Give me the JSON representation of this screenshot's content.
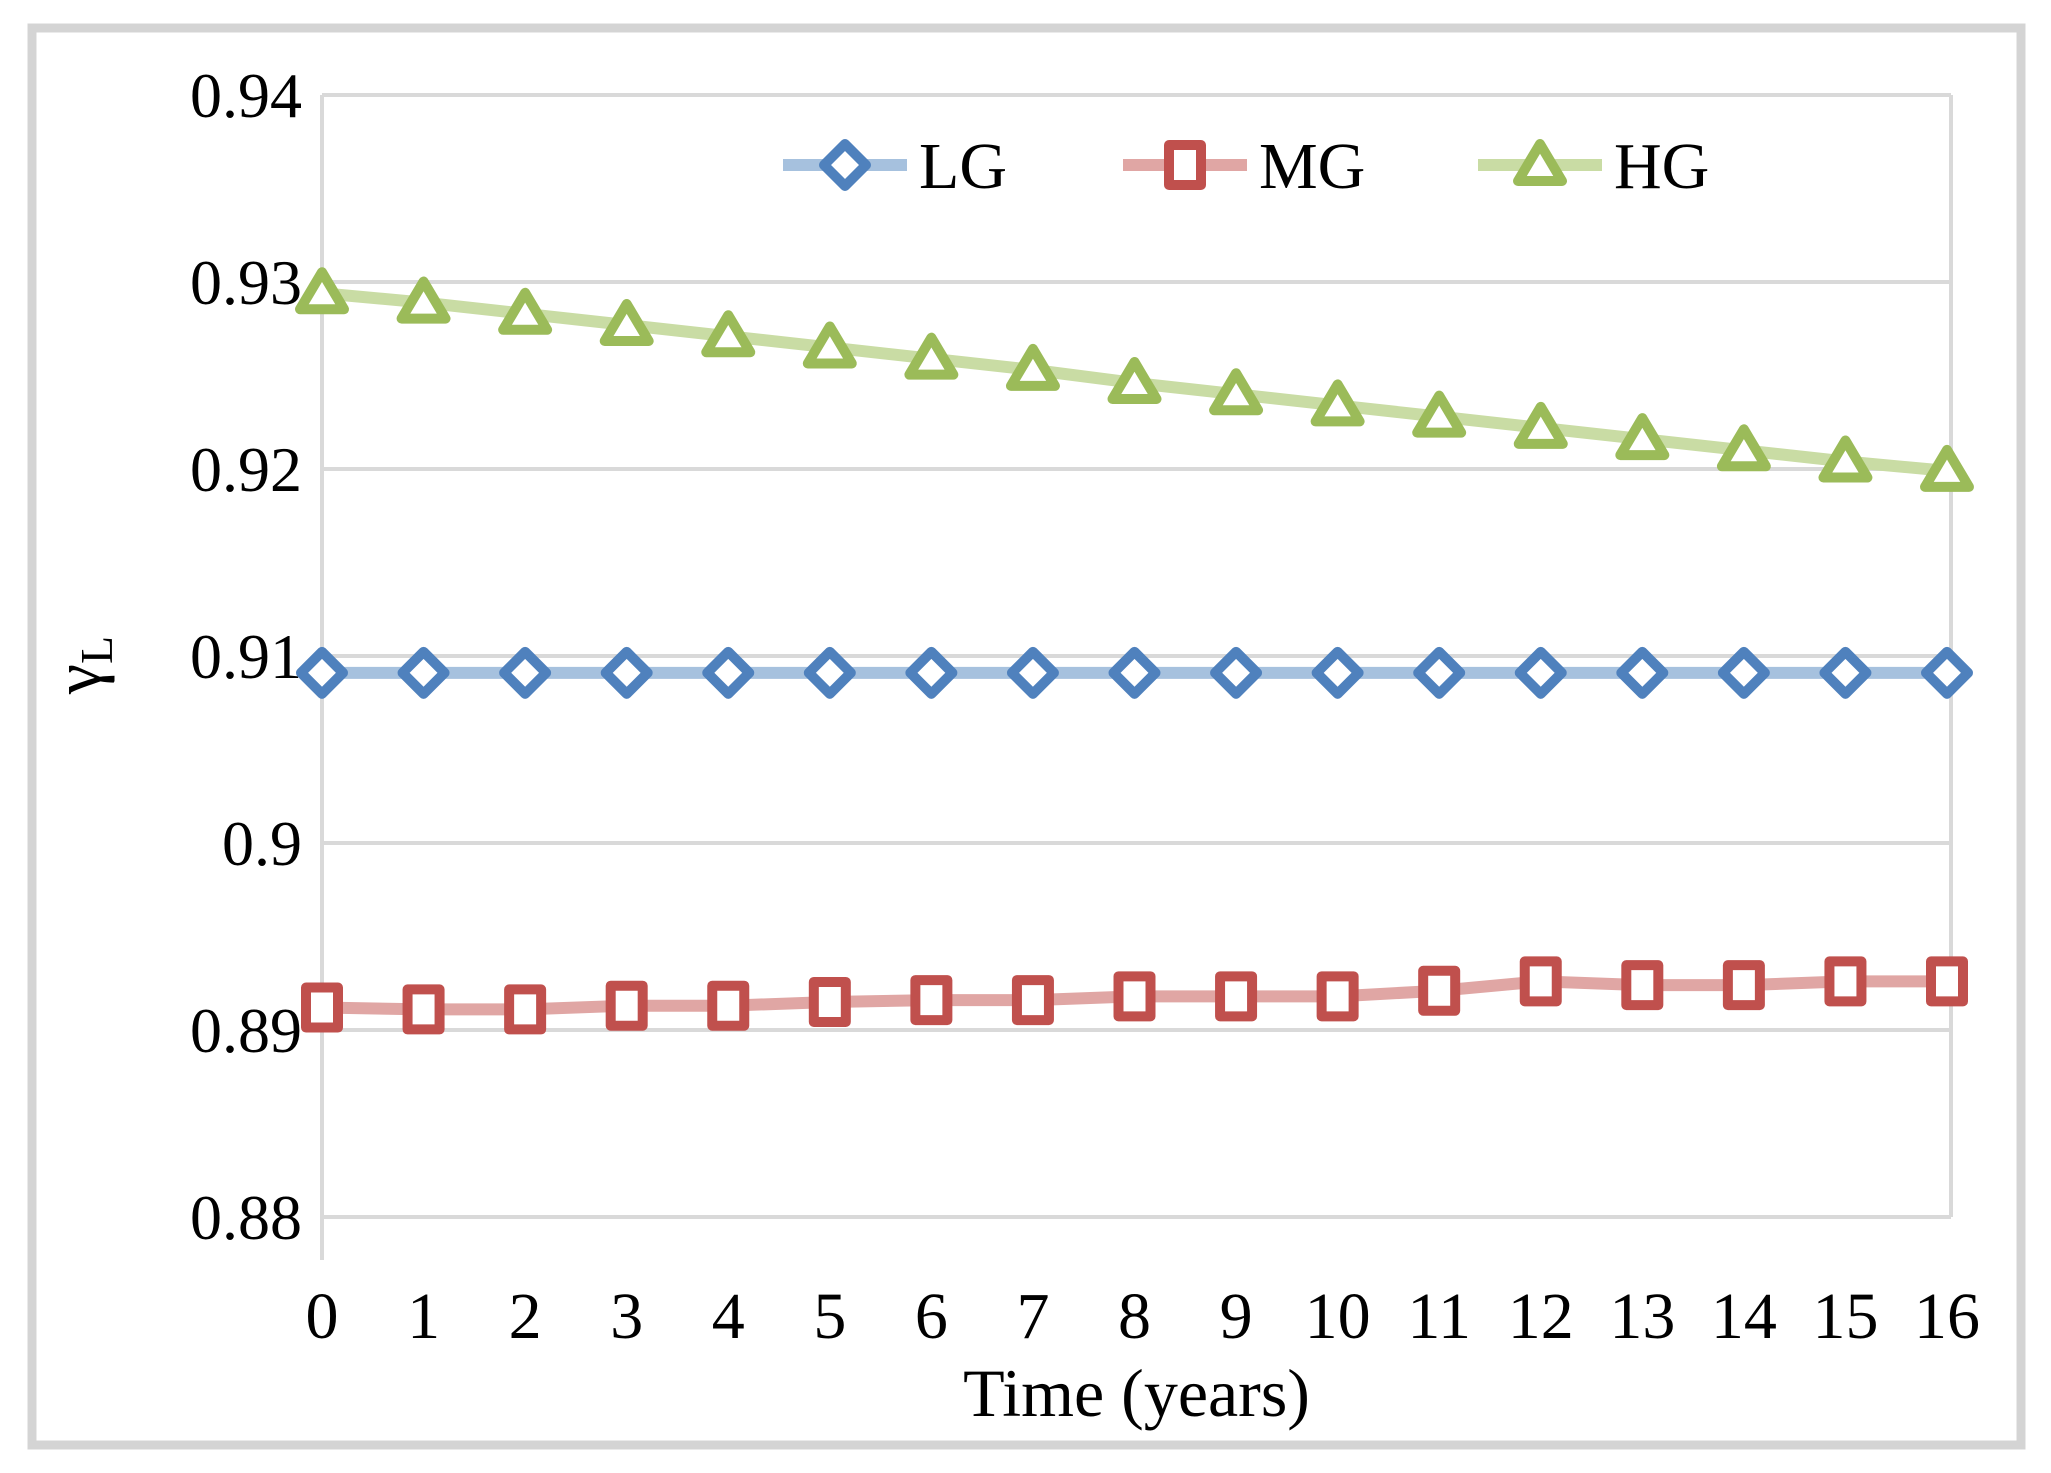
{
  "chart_data": {
    "type": "line",
    "title": "",
    "xlabel": "Time (years)",
    "ylabel": {
      "base": "γ",
      "sub": "L"
    },
    "x": [
      0,
      1,
      2,
      3,
      4,
      5,
      6,
      7,
      8,
      9,
      10,
      11,
      12,
      13,
      14,
      15,
      16
    ],
    "xtick_labels": [
      "0",
      "1",
      "2",
      "3",
      "4",
      "5",
      "6",
      "7",
      "8",
      "9",
      "10",
      "11",
      "12",
      "13",
      "14",
      "15",
      "16"
    ],
    "ylim": [
      0.88,
      0.94
    ],
    "ytick_labels": [
      "0.94",
      "0.93",
      "0.92",
      "0.91",
      "0.9",
      "0.89",
      "0.88"
    ],
    "ytick_values": [
      0.94,
      0.93,
      0.92,
      0.91,
      0.9,
      0.89,
      0.88
    ],
    "grid": true,
    "legend_position": "top-center-inside",
    "series": [
      {
        "name": "LG",
        "marker": "diamond",
        "marker_color": "#4F81BD",
        "line_color": "#A6C1DE",
        "values": [
          0.9091,
          0.9091,
          0.9091,
          0.9091,
          0.9091,
          0.9091,
          0.9091,
          0.9091,
          0.9091,
          0.9091,
          0.9091,
          0.9091,
          0.9091,
          0.9091,
          0.9091,
          0.9091,
          0.9091
        ]
      },
      {
        "name": "MG",
        "marker": "square",
        "marker_color": "#C0504D",
        "line_color": "#E0A6A4",
        "values": [
          0.8912,
          0.8911,
          0.8911,
          0.8913,
          0.8913,
          0.8915,
          0.8916,
          0.8916,
          0.8918,
          0.8918,
          0.8918,
          0.8921,
          0.8926,
          0.8924,
          0.8924,
          0.8926,
          0.8926
        ]
      },
      {
        "name": "HG",
        "marker": "triangle",
        "marker_color": "#9BBB59",
        "line_color": "#C9DCA4",
        "values": [
          0.9294,
          0.9289,
          0.9283,
          0.9277,
          0.9271,
          0.9265,
          0.9259,
          0.9253,
          0.9246,
          0.924,
          0.9234,
          0.9228,
          0.9222,
          0.9216,
          0.921,
          0.9204,
          0.9199
        ]
      }
    ],
    "colors": {
      "gridline": "#D9D9D9",
      "axis_line": "#D9D9D9",
      "figure_border": "#D4D4D4",
      "tick_text": "#000000"
    }
  }
}
